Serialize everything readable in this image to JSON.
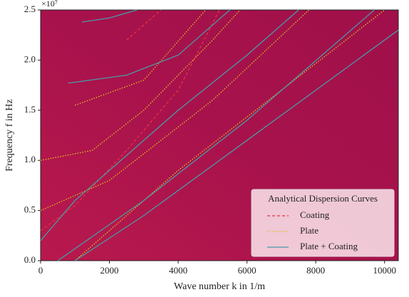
{
  "chart_data": {
    "type": "line",
    "xlabel": "Wave number k in 1/m",
    "ylabel": "Frequency f in Hz",
    "y_offset_text": "×10⁷",
    "xlim": [
      0,
      10400
    ],
    "ylim": [
      0,
      25000000
    ],
    "xticks": [
      0,
      2000,
      4000,
      6000,
      8000,
      10000
    ],
    "yticks": [
      {
        "value": 0,
        "label": "0.0"
      },
      {
        "value": 5000000,
        "label": "0.5"
      },
      {
        "value": 10000000,
        "label": "1.0"
      },
      {
        "value": 15000000,
        "label": "1.5"
      },
      {
        "value": 20000000,
        "label": "2.0"
      },
      {
        "value": 25000000,
        "label": "2.5"
      }
    ],
    "legend_title": "Analytical Dispersion Curves",
    "legend_position": "lower right",
    "series": [
      {
        "name": "Coating",
        "color": "#e8323c",
        "dash": "4,3",
        "x": [
          0,
          1000,
          2500,
          4000,
          5200,
          null,
          2500,
          3500
        ],
        "values": [
          3000000,
          5500000,
          11000000,
          17000000,
          25000000,
          null,
          22000000,
          25000000
        ]
      },
      {
        "name": "Plate",
        "color": "#e3c21a",
        "dash": "1.5,2",
        "x": [
          0,
          1500,
          3000,
          5000,
          5800,
          null,
          0,
          2000,
          5000,
          7800,
          null,
          1000,
          4000,
          10000,
          null,
          1000,
          3000,
          4800
        ],
        "values": [
          10000000,
          11000000,
          15000000,
          22000000,
          25000000,
          null,
          5000000,
          8000000,
          16000000,
          25000000,
          null,
          0,
          9000000,
          25000000,
          null,
          15500000,
          18000000,
          25000000
        ]
      },
      {
        "name": "Plate + Coating",
        "color": "#4a9aa5",
        "dash": "none",
        "x": [
          1000,
          3000,
          6000,
          10400,
          null,
          500,
          3000,
          6000,
          9700,
          null,
          800,
          2500,
          4000,
          5500,
          null,
          1200,
          2000,
          2800,
          null,
          0,
          1000,
          2500,
          4000,
          6000,
          7500
        ],
        "values": [
          0,
          4500000,
          12000000,
          23000000,
          null,
          0,
          6000000,
          14000000,
          25000000,
          null,
          17700000,
          18500000,
          20500000,
          25000000,
          null,
          23800000,
          24200000,
          25000000,
          null,
          2000000,
          6000000,
          10500000,
          15000000,
          20500000,
          25000000
        ]
      }
    ]
  }
}
